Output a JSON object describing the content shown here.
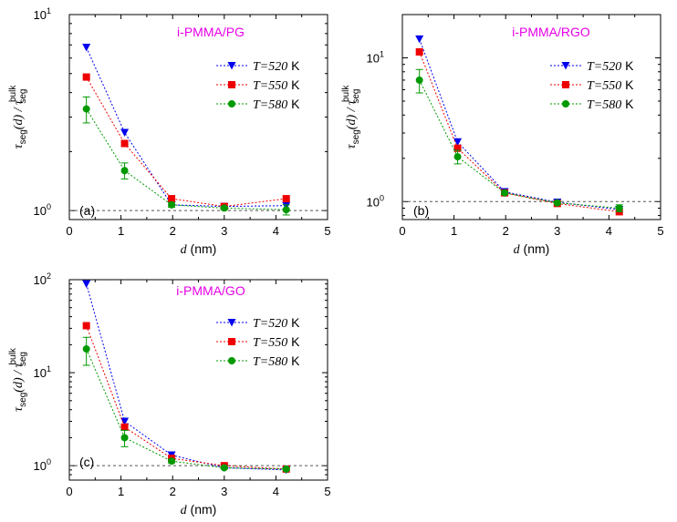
{
  "chart_data": [
    {
      "type": "line",
      "panel": "(a)",
      "title": "i-PMMA/PG",
      "xlabel": "d (nm)",
      "ylabel": "τseg(d)/τseg bulk",
      "xlim": [
        0,
        5
      ],
      "ylim": [
        0.9,
        10
      ],
      "yscale": "log",
      "xticks": [
        0,
        1,
        2,
        3,
        4,
        5
      ],
      "yticks": [
        {
          "value": 1,
          "label": "10",
          "sup": "0"
        },
        {
          "value": 10,
          "label": "10",
          "sup": "1"
        }
      ],
      "yminor": [
        0.9,
        2,
        3,
        4,
        5,
        6,
        7,
        8,
        9
      ],
      "reference_line": 1,
      "series": [
        {
          "name": "T=520 K",
          "T": "T",
          "eq": "=520",
          "unit": " K",
          "color": "#0000ee",
          "marker": "triangle-down",
          "x": [
            0.33,
            1.07,
            1.98,
            3.0,
            4.2
          ],
          "y": [
            6.8,
            2.5,
            1.07,
            1.05,
            1.06
          ],
          "err": [
            0,
            0,
            0,
            0,
            0
          ]
        },
        {
          "name": "T=550 K",
          "T": "T",
          "eq": "=550",
          "unit": " K",
          "color": "#ee0000",
          "marker": "square",
          "x": [
            0.33,
            1.07,
            1.98,
            3.0,
            4.2
          ],
          "y": [
            4.8,
            2.2,
            1.15,
            1.05,
            1.15
          ],
          "err": [
            0,
            0,
            0,
            0,
            0
          ]
        },
        {
          "name": "T=580 K",
          "T": "T",
          "eq": "=580",
          "unit": " K",
          "color": "#009900",
          "marker": "circle",
          "x": [
            0.33,
            1.07,
            1.98,
            3.0,
            4.2
          ],
          "y": [
            3.3,
            1.6,
            1.07,
            1.03,
            1.01
          ],
          "err": [
            0.5,
            0.15,
            0.03,
            0.02,
            0.06
          ]
        }
      ]
    },
    {
      "type": "line",
      "panel": "(b)",
      "title": "i-PMMA/RGO",
      "xlabel": "d (nm)",
      "ylabel": "τseg(d)/τseg bulk",
      "xlim": [
        0,
        5
      ],
      "ylim": [
        0.75,
        20
      ],
      "yscale": "log",
      "xticks": [
        0,
        1,
        2,
        3,
        4,
        5
      ],
      "yticks": [
        {
          "value": 1,
          "label": "10",
          "sup": "0"
        },
        {
          "value": 10,
          "label": "10",
          "sup": "1"
        }
      ],
      "yminor": [
        0.8,
        0.9,
        2,
        3,
        4,
        5,
        6,
        7,
        8,
        9,
        20
      ],
      "reference_line": 1,
      "series": [
        {
          "name": "T=520 K",
          "T": "T",
          "eq": "=520",
          "unit": " K",
          "color": "#0000ee",
          "marker": "triangle-down",
          "x": [
            0.33,
            1.07,
            1.98,
            3.0,
            4.2
          ],
          "y": [
            13.5,
            2.6,
            1.17,
            0.99,
            0.88
          ],
          "err": [
            0,
            0,
            0,
            0,
            0
          ]
        },
        {
          "name": "T=550 K",
          "T": "T",
          "eq": "=550",
          "unit": " K",
          "color": "#ee0000",
          "marker": "square",
          "x": [
            0.33,
            1.07,
            1.98,
            3.0,
            4.2
          ],
          "y": [
            11.0,
            2.35,
            1.15,
            0.97,
            0.85
          ],
          "err": [
            0,
            0,
            0,
            0,
            0
          ]
        },
        {
          "name": "T=580 K",
          "T": "T",
          "eq": "=580",
          "unit": " K",
          "color": "#009900",
          "marker": "circle",
          "x": [
            0.33,
            1.07,
            1.98,
            3.0,
            4.2
          ],
          "y": [
            7.0,
            2.05,
            1.15,
            0.98,
            0.9
          ],
          "err": [
            1.3,
            0.22,
            0.03,
            0.02,
            0.05
          ]
        }
      ]
    },
    {
      "type": "line",
      "panel": "(c)",
      "title": "i-PMMA/GO",
      "xlabel": "d (nm)",
      "ylabel": "τseg(d)/τseg bulk",
      "xlim": [
        0,
        5
      ],
      "ylim": [
        0.7,
        100
      ],
      "yscale": "log",
      "xticks": [
        0,
        1,
        2,
        3,
        4,
        5
      ],
      "yticks": [
        {
          "value": 1,
          "label": "10",
          "sup": "0"
        },
        {
          "value": 10,
          "label": "10",
          "sup": "1"
        },
        {
          "value": 100,
          "label": "10",
          "sup": "2"
        }
      ],
      "yminor": [
        0.7,
        0.8,
        0.9,
        2,
        3,
        4,
        5,
        6,
        7,
        8,
        9,
        20,
        30,
        40,
        50,
        60,
        70,
        80,
        90
      ],
      "reference_line": 1,
      "series": [
        {
          "name": "T=520 K",
          "T": "T",
          "eq": "=520",
          "unit": " K",
          "color": "#0000ee",
          "marker": "triangle-down",
          "x": [
            0.33,
            1.07,
            1.98,
            3.0,
            4.2
          ],
          "y": [
            90,
            3.0,
            1.3,
            0.95,
            0.9
          ],
          "err": [
            0,
            0,
            0,
            0,
            0
          ]
        },
        {
          "name": "T=550 K",
          "T": "T",
          "eq": "=550",
          "unit": " K",
          "color": "#ee0000",
          "marker": "square",
          "x": [
            0.33,
            1.07,
            1.98,
            3.0,
            4.2
          ],
          "y": [
            32,
            2.6,
            1.2,
            1.0,
            0.92
          ],
          "err": [
            0,
            0,
            0,
            0,
            0
          ]
        },
        {
          "name": "T=580 K",
          "T": "T",
          "eq": "=580",
          "unit": " K",
          "color": "#009900",
          "marker": "circle",
          "x": [
            0.33,
            1.07,
            1.98,
            3.0,
            4.2
          ],
          "y": [
            18,
            2.0,
            1.12,
            0.95,
            0.92
          ],
          "err": [
            6,
            0.4,
            0.05,
            0.02,
            0.03
          ]
        }
      ]
    }
  ],
  "labels": {
    "ylabel_tau": "τ",
    "ylabel_seg": "seg",
    "ylabel_d": "(d) / ",
    "ylabel_bulk": "bulk",
    "xlabel_d": "d",
    "xlabel_unit": " (nm)"
  },
  "colors": {
    "title": "#e600e6",
    "axis": "#000000",
    "ref": "#555555"
  }
}
